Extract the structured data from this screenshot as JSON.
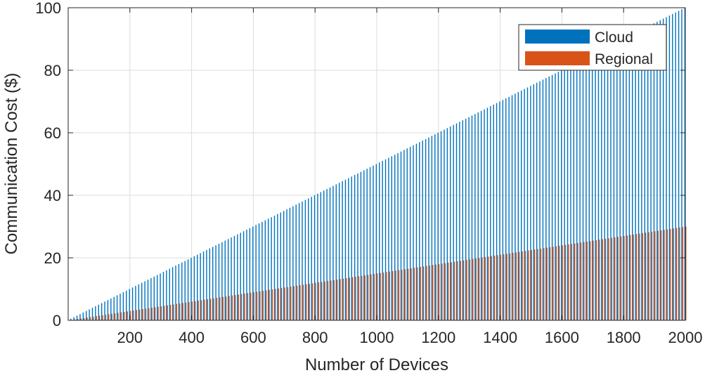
{
  "chart_data": {
    "type": "bar",
    "title": "",
    "xlabel": "Number of Devices",
    "ylabel": "Communication Cost ($)",
    "xlim": [
      0,
      2000
    ],
    "ylim": [
      0,
      100
    ],
    "xticks": [
      200,
      400,
      600,
      800,
      1000,
      1200,
      1400,
      1600,
      1800,
      2000
    ],
    "yticks": [
      0,
      20,
      40,
      60,
      80,
      100
    ],
    "grid": true,
    "legend_position": "top-right",
    "bar_x_start": 10,
    "bar_x_step": 10,
    "bar_count": 200,
    "series": [
      {
        "name": "Cloud",
        "color": "#0072BD",
        "rate_per_device": 0.05
      },
      {
        "name": "Regional",
        "color": "#D95319",
        "rate_per_device": 0.015
      }
    ]
  }
}
